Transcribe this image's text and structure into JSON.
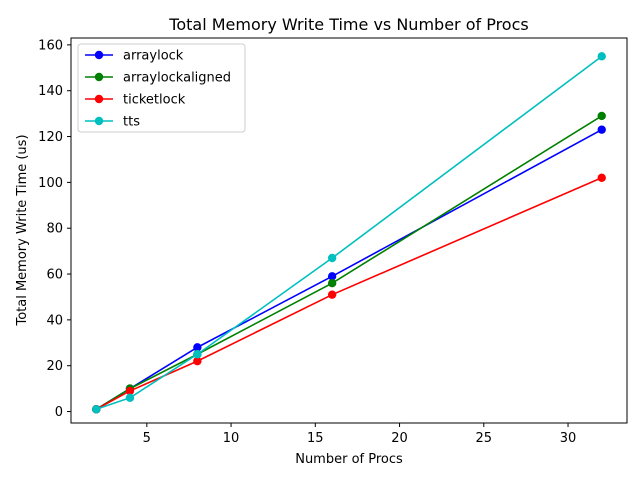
{
  "chart_data": {
    "type": "line",
    "title": "Total Memory Write Time vs Number of Procs",
    "xlabel": "Number of Procs",
    "ylabel": "Total Memory Write Time (us)",
    "x": [
      2,
      4,
      8,
      16,
      32
    ],
    "xlim": [
      0.5,
      33.5
    ],
    "ylim": [
      -5,
      163
    ],
    "xticks": [
      5,
      10,
      15,
      20,
      25,
      30
    ],
    "yticks": [
      0,
      20,
      40,
      60,
      80,
      100,
      120,
      140,
      160
    ],
    "grid": false,
    "legend_position": "upper-left",
    "series": [
      {
        "name": "arraylock",
        "color": "#0000ff",
        "values": [
          1,
          10,
          28,
          59,
          123
        ]
      },
      {
        "name": "arraylockaligned",
        "color": "#008000",
        "values": [
          1,
          10,
          25,
          56,
          129
        ]
      },
      {
        "name": "ticketlock",
        "color": "#ff0000",
        "values": [
          1,
          9,
          22,
          51,
          102
        ]
      },
      {
        "name": "tts",
        "color": "#00bfbf",
        "values": [
          1,
          6,
          25,
          67,
          155
        ]
      }
    ]
  }
}
